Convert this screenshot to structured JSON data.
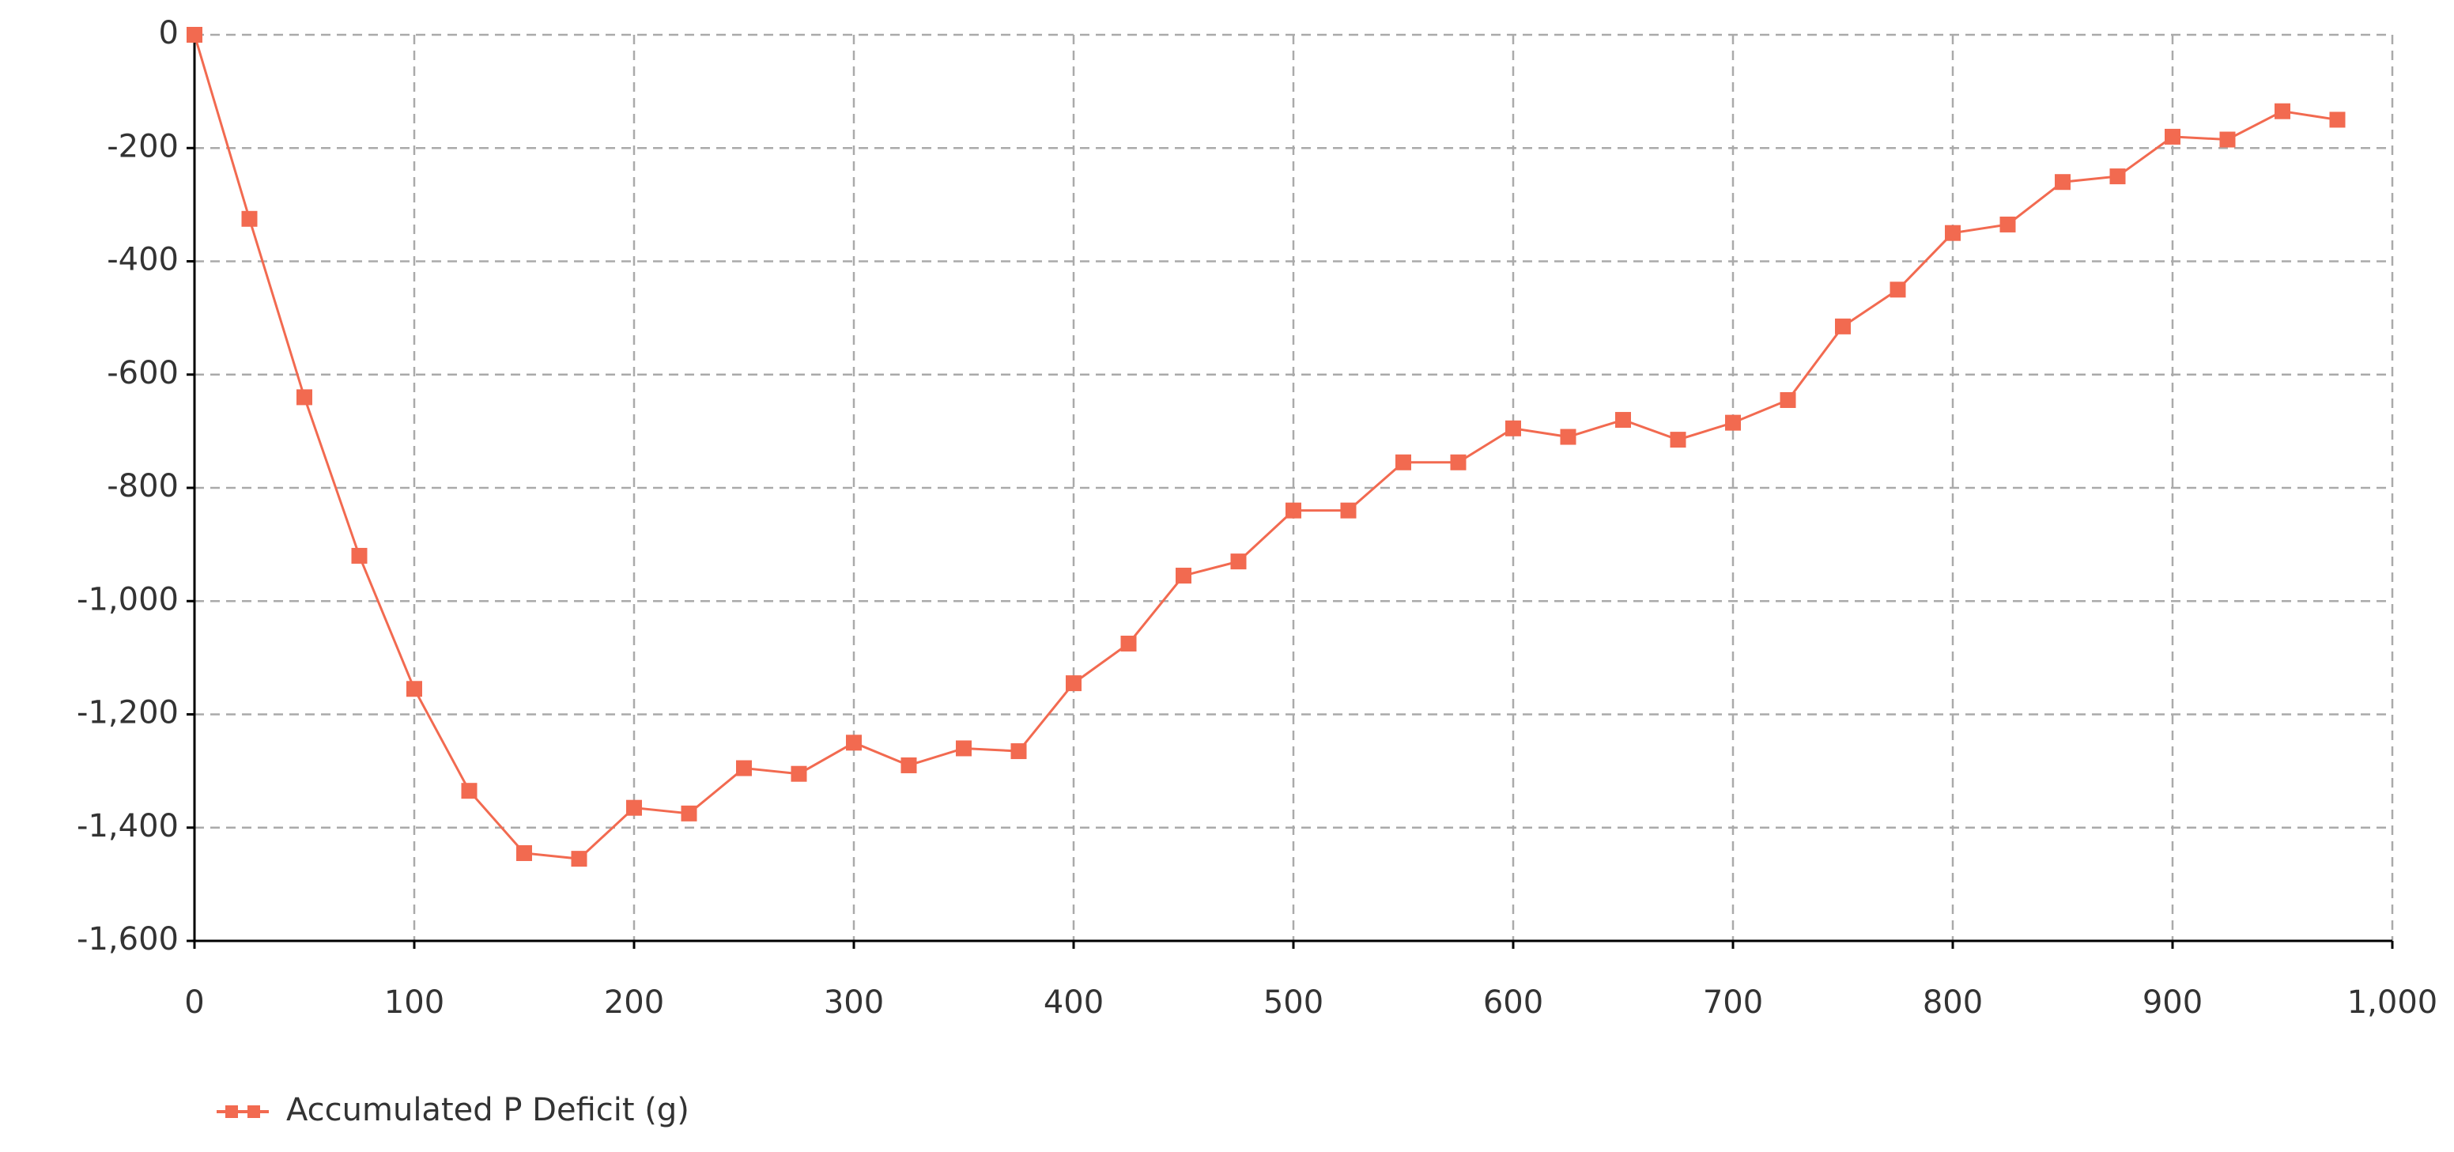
{
  "chart_data": {
    "type": "line",
    "x": [
      0,
      25,
      50,
      75,
      100,
      125,
      150,
      175,
      200,
      225,
      250,
      275,
      300,
      325,
      350,
      375,
      400,
      425,
      450,
      475,
      500,
      525,
      550,
      575,
      600,
      625,
      650,
      675,
      700,
      725,
      750,
      775,
      800,
      825,
      850,
      875,
      900,
      925,
      950,
      975
    ],
    "series": [
      {
        "name": "Accumulated P Deficit (g)",
        "color": "#f26a50",
        "values": [
          0,
          -325,
          -640,
          -920,
          -1155,
          -1335,
          -1445,
          -1455,
          -1365,
          -1375,
          -1295,
          -1305,
          -1250,
          -1290,
          -1260,
          -1265,
          -1145,
          -1075,
          -955,
          -930,
          -840,
          -840,
          -755,
          -755,
          -695,
          -710,
          -680,
          -715,
          -685,
          -645,
          -515,
          -450,
          -350,
          -335,
          -260,
          -250,
          -180,
          -185,
          -135,
          -150
        ]
      }
    ],
    "xlim": [
      0,
      1000
    ],
    "xticks": [
      0,
      100,
      200,
      300,
      400,
      500,
      600,
      700,
      800,
      900,
      {
        "value": 1000,
        "label": "1,000"
      }
    ],
    "ylim": [
      -1600,
      0
    ],
    "yticks": [
      0,
      -200,
      -400,
      -600,
      -800,
      {
        "value": -1000,
        "label": "-1,000"
      },
      {
        "value": -1200,
        "label": "-1,200"
      },
      {
        "value": -1400,
        "label": "-1,400"
      },
      {
        "value": -1600,
        "label": "-1,600"
      }
    ],
    "grid": true,
    "legend": "bottom-left"
  }
}
